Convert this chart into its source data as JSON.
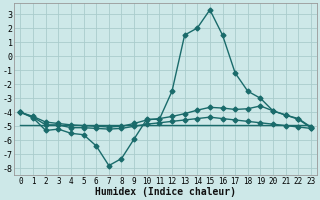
{
  "xlabel": "Humidex (Indice chaleur)",
  "background_color": "#cde8e8",
  "grid_color": "#aacccc",
  "line_color": "#1a6b6b",
  "xlim": [
    -0.5,
    23.5
  ],
  "ylim": [
    -8.5,
    3.8
  ],
  "yticks": [
    3,
    2,
    1,
    0,
    -1,
    -2,
    -3,
    -4,
    -5,
    -6,
    -7,
    -8
  ],
  "xticks": [
    0,
    1,
    2,
    3,
    4,
    5,
    6,
    7,
    8,
    9,
    10,
    11,
    12,
    13,
    14,
    15,
    16,
    17,
    18,
    19,
    20,
    21,
    22,
    23
  ],
  "lines": [
    {
      "x": [
        0,
        1,
        2,
        3,
        4,
        5,
        6,
        7,
        8,
        9,
        10,
        11,
        12,
        13,
        14,
        15,
        16,
        17,
        18,
        19,
        20,
        21,
        22,
        23
      ],
      "y": [
        -4.0,
        -4.4,
        -5.3,
        -5.2,
        -5.5,
        -5.6,
        -6.4,
        -7.8,
        -7.3,
        -5.9,
        -4.5,
        -4.5,
        -2.5,
        1.5,
        2.0,
        3.3,
        1.5,
        -1.2,
        -2.5,
        -3.0,
        -3.9,
        -4.2,
        -4.5,
        -5.1
      ]
    },
    {
      "x": [
        0,
        1,
        2,
        3,
        4,
        5,
        6,
        7,
        8,
        9,
        10,
        11,
        12,
        13,
        14,
        15,
        16,
        17,
        18,
        19,
        20,
        21,
        22,
        23
      ],
      "y": [
        -4.0,
        -4.3,
        -4.7,
        -4.8,
        -4.9,
        -4.95,
        -5.0,
        -5.05,
        -5.0,
        -4.8,
        -4.55,
        -4.45,
        -4.3,
        -4.1,
        -3.85,
        -3.65,
        -3.7,
        -3.8,
        -3.75,
        -3.55,
        -3.9,
        -4.2,
        -4.45,
        -5.05
      ]
    },
    {
      "x": [
        0,
        1,
        2,
        3,
        4,
        5,
        6,
        7,
        8,
        9,
        10,
        11,
        12,
        13,
        14,
        15,
        16,
        17,
        18,
        19,
        20,
        21,
        22,
        23
      ],
      "y": [
        -4.0,
        -4.35,
        -4.9,
        -4.9,
        -5.1,
        -5.1,
        -5.15,
        -5.2,
        -5.15,
        -5.0,
        -4.85,
        -4.75,
        -4.65,
        -4.55,
        -4.45,
        -4.35,
        -4.45,
        -4.55,
        -4.65,
        -4.75,
        -4.85,
        -4.95,
        -5.05,
        -5.15
      ]
    },
    {
      "x": [
        0,
        23
      ],
      "y": [
        -4.9,
        -4.9
      ],
      "no_marker": true
    }
  ],
  "marker": "D",
  "markersize": 2.5,
  "linewidth": 1.0
}
